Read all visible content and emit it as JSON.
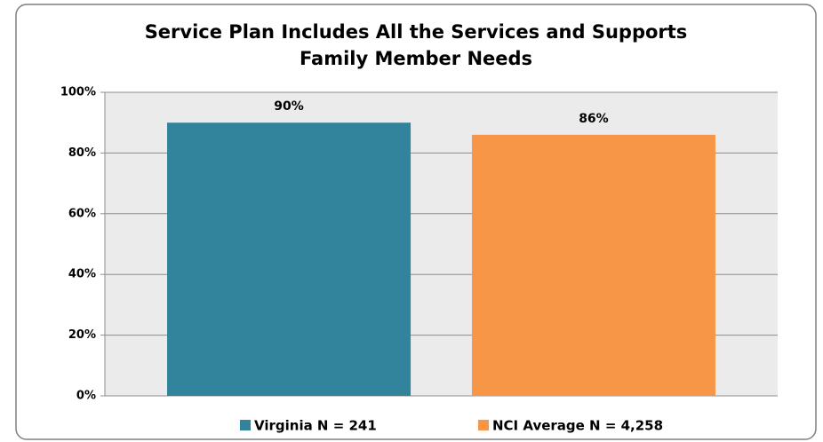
{
  "chart_data": {
    "type": "bar",
    "title": [
      "Service Plan Includes All the Services and Supports",
      "Family Member Needs"
    ],
    "categories": [
      null
    ],
    "series": [
      {
        "name": "Virginia N = 241",
        "color": "#31849b",
        "values": [
          90
        ],
        "value_labels": [
          "90%"
        ]
      },
      {
        "name": "NCI Average N = 4,258",
        "color": "#f79646",
        "values": [
          86
        ],
        "value_labels": [
          "86%"
        ]
      }
    ],
    "ylim": [
      0,
      100
    ],
    "yticks": [
      {
        "value": 0,
        "label": "0%"
      },
      {
        "value": 20,
        "label": "20%"
      },
      {
        "value": 40,
        "label": "40%"
      },
      {
        "value": 60,
        "label": "60%"
      },
      {
        "value": 80,
        "label": "80%"
      },
      {
        "value": 100,
        "label": "100%"
      }
    ],
    "grid": true,
    "legend": "bottom"
  }
}
